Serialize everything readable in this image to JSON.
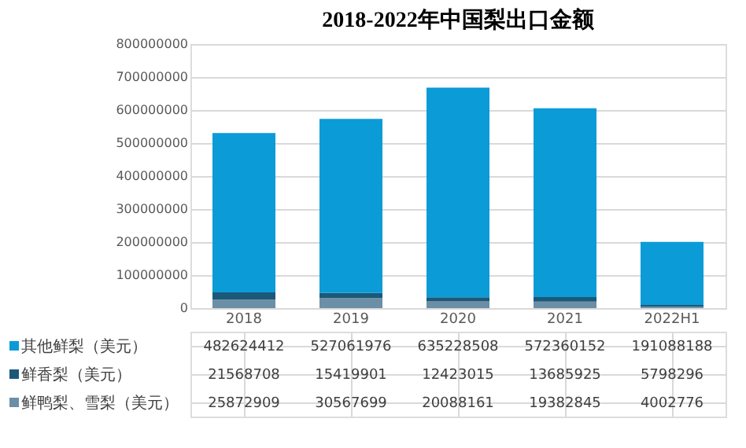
{
  "chart_data": {
    "type": "bar",
    "title": "2018-2022年中国梨出口金额",
    "categories": [
      "2018",
      "2019",
      "2020",
      "2021",
      "2022H1"
    ],
    "stacked": true,
    "series": [
      {
        "name": "鲜鸭梨、雪梨（美元）",
        "color": "#6b8fa6",
        "values": [
          25872909,
          30567699,
          20088161,
          19382845,
          4002776
        ]
      },
      {
        "name": "鲜香梨（美元）",
        "color": "#1c5878",
        "values": [
          21568708,
          15419901,
          12423015,
          13685925,
          5798296
        ]
      },
      {
        "name": "其他鲜梨（美元）",
        "color": "#0b9bd7",
        "values": [
          482624412,
          527061976,
          635228508,
          572360152,
          191088188
        ]
      }
    ],
    "ylim": [
      0,
      800000000
    ],
    "yticks": [
      0,
      100000000,
      200000000,
      300000000,
      400000000,
      500000000,
      600000000,
      700000000,
      800000000
    ],
    "grid": "y",
    "legend": "bottom",
    "data_labels": true
  }
}
